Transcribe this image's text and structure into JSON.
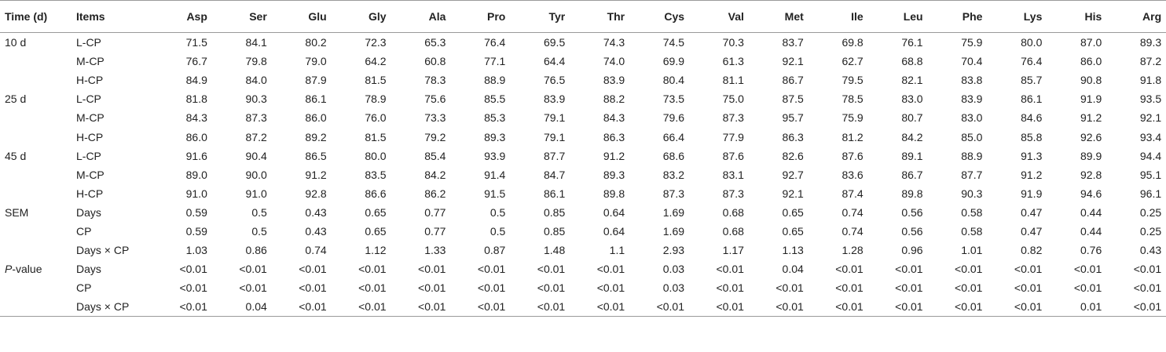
{
  "table": {
    "headers": [
      "Time (d)",
      "Items",
      "Asp",
      "Ser",
      "Glu",
      "Gly",
      "Ala",
      "Pro",
      "Tyr",
      "Thr",
      "Cys",
      "Val",
      "Met",
      "Ile",
      "Leu",
      "Phe",
      "Lys",
      "His",
      "Arg"
    ],
    "rows": [
      {
        "group": "10 d",
        "item": "L-CP",
        "values": [
          "71.5",
          "84.1",
          "80.2",
          "72.3",
          "65.3",
          "76.4",
          "69.5",
          "74.3",
          "74.5",
          "70.3",
          "83.7",
          "69.8",
          "76.1",
          "75.9",
          "80.0",
          "87.0",
          "89.3"
        ]
      },
      {
        "group": "",
        "item": "M-CP",
        "values": [
          "76.7",
          "79.8",
          "79.0",
          "64.2",
          "60.8",
          "77.1",
          "64.4",
          "74.0",
          "69.9",
          "61.3",
          "92.1",
          "62.7",
          "68.8",
          "70.4",
          "76.4",
          "86.0",
          "87.2"
        ]
      },
      {
        "group": "",
        "item": "H-CP",
        "values": [
          "84.9",
          "84.0",
          "87.9",
          "81.5",
          "78.3",
          "88.9",
          "76.5",
          "83.9",
          "80.4",
          "81.1",
          "86.7",
          "79.5",
          "82.1",
          "83.8",
          "85.7",
          "90.8",
          "91.8"
        ]
      },
      {
        "group": "25 d",
        "item": "L-CP",
        "values": [
          "81.8",
          "90.3",
          "86.1",
          "78.9",
          "75.6",
          "85.5",
          "83.9",
          "88.2",
          "73.5",
          "75.0",
          "87.5",
          "78.5",
          "83.0",
          "83.9",
          "86.1",
          "91.9",
          "93.5"
        ]
      },
      {
        "group": "",
        "item": "M-CP",
        "values": [
          "84.3",
          "87.3",
          "86.0",
          "76.0",
          "73.3",
          "85.3",
          "79.1",
          "84.3",
          "79.6",
          "87.3",
          "95.7",
          "75.9",
          "80.7",
          "83.0",
          "84.6",
          "91.2",
          "92.1"
        ]
      },
      {
        "group": "",
        "item": "H-CP",
        "values": [
          "86.0",
          "87.2",
          "89.2",
          "81.5",
          "79.2",
          "89.3",
          "79.1",
          "86.3",
          "66.4",
          "77.9",
          "86.3",
          "81.2",
          "84.2",
          "85.0",
          "85.8",
          "92.6",
          "93.4"
        ]
      },
      {
        "group": "45 d",
        "item": "L-CP",
        "values": [
          "91.6",
          "90.4",
          "86.5",
          "80.0",
          "85.4",
          "93.9",
          "87.7",
          "91.2",
          "68.6",
          "87.6",
          "82.6",
          "87.6",
          "89.1",
          "88.9",
          "91.3",
          "89.9",
          "94.4"
        ]
      },
      {
        "group": "",
        "item": "M-CP",
        "values": [
          "89.0",
          "90.0",
          "91.2",
          "83.5",
          "84.2",
          "91.4",
          "84.7",
          "89.3",
          "83.2",
          "83.1",
          "92.7",
          "83.6",
          "86.7",
          "87.7",
          "91.2",
          "92.8",
          "95.1"
        ]
      },
      {
        "group": "",
        "item": "H-CP",
        "values": [
          "91.0",
          "91.0",
          "92.8",
          "86.6",
          "86.2",
          "91.5",
          "86.1",
          "89.8",
          "87.3",
          "87.3",
          "92.1",
          "87.4",
          "89.8",
          "90.3",
          "91.9",
          "94.6",
          "96.1"
        ]
      },
      {
        "group": "SEM",
        "item": "Days",
        "values": [
          "0.59",
          "0.5",
          "0.43",
          "0.65",
          "0.77",
          "0.5",
          "0.85",
          "0.64",
          "1.69",
          "0.68",
          "0.65",
          "0.74",
          "0.56",
          "0.58",
          "0.47",
          "0.44",
          "0.25"
        ]
      },
      {
        "group": "",
        "item": "CP",
        "values": [
          "0.59",
          "0.5",
          "0.43",
          "0.65",
          "0.77",
          "0.5",
          "0.85",
          "0.64",
          "1.69",
          "0.68",
          "0.65",
          "0.74",
          "0.56",
          "0.58",
          "0.47",
          "0.44",
          "0.25"
        ]
      },
      {
        "group": "",
        "item": "Days × CP",
        "values": [
          "1.03",
          "0.86",
          "0.74",
          "1.12",
          "1.33",
          "0.87",
          "1.48",
          "1.1",
          "2.93",
          "1.17",
          "1.13",
          "1.28",
          "0.96",
          "1.01",
          "0.82",
          "0.76",
          "0.43"
        ]
      },
      {
        "group_italic": "P",
        "group_suffix": "-value",
        "item": "Days",
        "values": [
          "<0.01",
          "<0.01",
          "<0.01",
          "<0.01",
          "<0.01",
          "<0.01",
          "<0.01",
          "<0.01",
          "0.03",
          "<0.01",
          "0.04",
          "<0.01",
          "<0.01",
          "<0.01",
          "<0.01",
          "<0.01",
          "<0.01"
        ]
      },
      {
        "group": "",
        "item": "CP",
        "values": [
          "<0.01",
          "<0.01",
          "<0.01",
          "<0.01",
          "<0.01",
          "<0.01",
          "<0.01",
          "<0.01",
          "0.03",
          "<0.01",
          "<0.01",
          "<0.01",
          "<0.01",
          "<0.01",
          "<0.01",
          "<0.01",
          "<0.01"
        ]
      },
      {
        "group": "",
        "item": "Days × CP",
        "values": [
          "<0.01",
          "0.04",
          "<0.01",
          "<0.01",
          "<0.01",
          "<0.01",
          "<0.01",
          "<0.01",
          "<0.01",
          "<0.01",
          "<0.01",
          "<0.01",
          "<0.01",
          "<0.01",
          "<0.01",
          "0.01",
          "<0.01"
        ]
      }
    ]
  }
}
